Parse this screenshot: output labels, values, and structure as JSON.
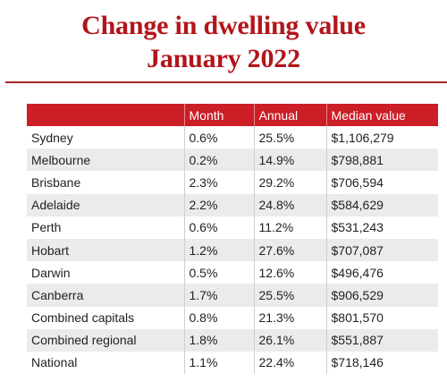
{
  "title": {
    "line1": "Change in dwelling value",
    "line2": "January 2022"
  },
  "colors": {
    "title": "#b2151b",
    "header_bg": "#cc1e27",
    "rule": "#a5272a",
    "alt_row": "#ebebeb"
  },
  "table": {
    "headers": [
      "",
      "Month",
      "Annual",
      "Median value"
    ],
    "rows": [
      {
        "region": "Sydney",
        "month": "0.6%",
        "annual": "25.5%",
        "median": "$1,106,279"
      },
      {
        "region": "Melbourne",
        "month": "0.2%",
        "annual": "14.9%",
        "median": "$798,881"
      },
      {
        "region": "Brisbane",
        "month": "2.3%",
        "annual": "29.2%",
        "median": "$706,594"
      },
      {
        "region": "Adelaide",
        "month": "2.2%",
        "annual": "24.8%",
        "median": "$584,629"
      },
      {
        "region": "Perth",
        "month": "0.6%",
        "annual": "11.2%",
        "median": "$531,243"
      },
      {
        "region": "Hobart",
        "month": "1.2%",
        "annual": "27.6%",
        "median": "$707,087"
      },
      {
        "region": "Darwin",
        "month": "0.5%",
        "annual": "12.6%",
        "median": "$496,476"
      },
      {
        "region": "Canberra",
        "month": "1.7%",
        "annual": "25.5%",
        "median": "$906,529"
      },
      {
        "region": "Combined capitals",
        "month": "0.8%",
        "annual": "21.3%",
        "median": "$801,570"
      },
      {
        "region": "Combined regional",
        "month": "1.8%",
        "annual": "26.1%",
        "median": "$551,887"
      },
      {
        "region": "National",
        "month": "1.1%",
        "annual": "22.4%",
        "median": "$718,146"
      }
    ]
  }
}
